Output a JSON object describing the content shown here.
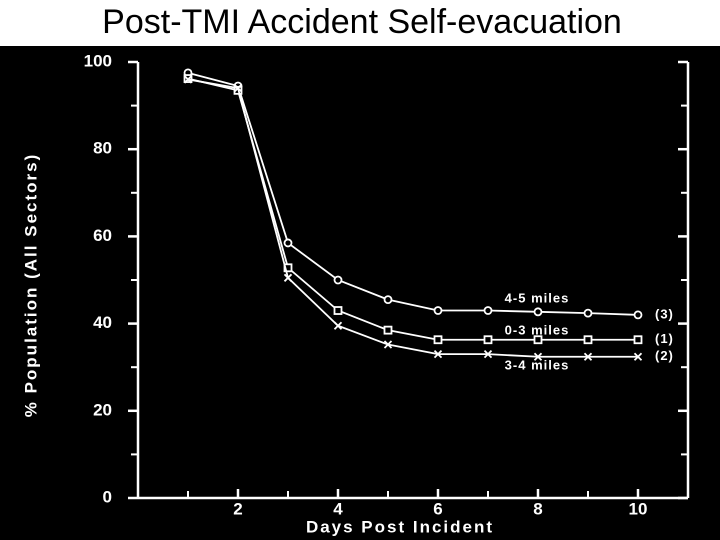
{
  "chart_data": {
    "type": "line",
    "title": "Post-TMI Accident Self-evacuation",
    "x_label": "Days Post Incident",
    "y_label": "% Population (All Sectors)",
    "xlim": [
      0,
      11
    ],
    "ylim": [
      0,
      100
    ],
    "xticks": [
      2,
      4,
      6,
      8,
      {
        "value": 10,
        "label": "10"
      }
    ],
    "xminorticks": [
      1,
      3,
      5,
      7,
      9
    ],
    "yticks": [
      0,
      20,
      40,
      60,
      80,
      100
    ],
    "yminorticks": [
      10,
      30,
      50,
      70,
      90
    ],
    "x": [
      1,
      2,
      3,
      4,
      5,
      6,
      7,
      8,
      9,
      10
    ],
    "series": [
      {
        "name": "4-5 miles",
        "tag": "(3)",
        "marker": "circle",
        "color": "#ffffff",
        "values": [
          97.5,
          94.5,
          58.5,
          50,
          45.5,
          43,
          43,
          42.7,
          42.4,
          42
        ]
      },
      {
        "name": "0-3 miles",
        "tag": "(1)",
        "marker": "square",
        "color": "#ffffff",
        "values": [
          96.2,
          93.5,
          52.8,
          43,
          38.5,
          36.3,
          36.3,
          36.3,
          36.3,
          36.3
        ]
      },
      {
        "name": "3-4 miles",
        "tag": "(2)",
        "marker": "x",
        "color": "#ffffff",
        "values": [
          96,
          94,
          50.5,
          39.5,
          35.2,
          33,
          33,
          32.4,
          32.4,
          32.4
        ]
      }
    ]
  }
}
